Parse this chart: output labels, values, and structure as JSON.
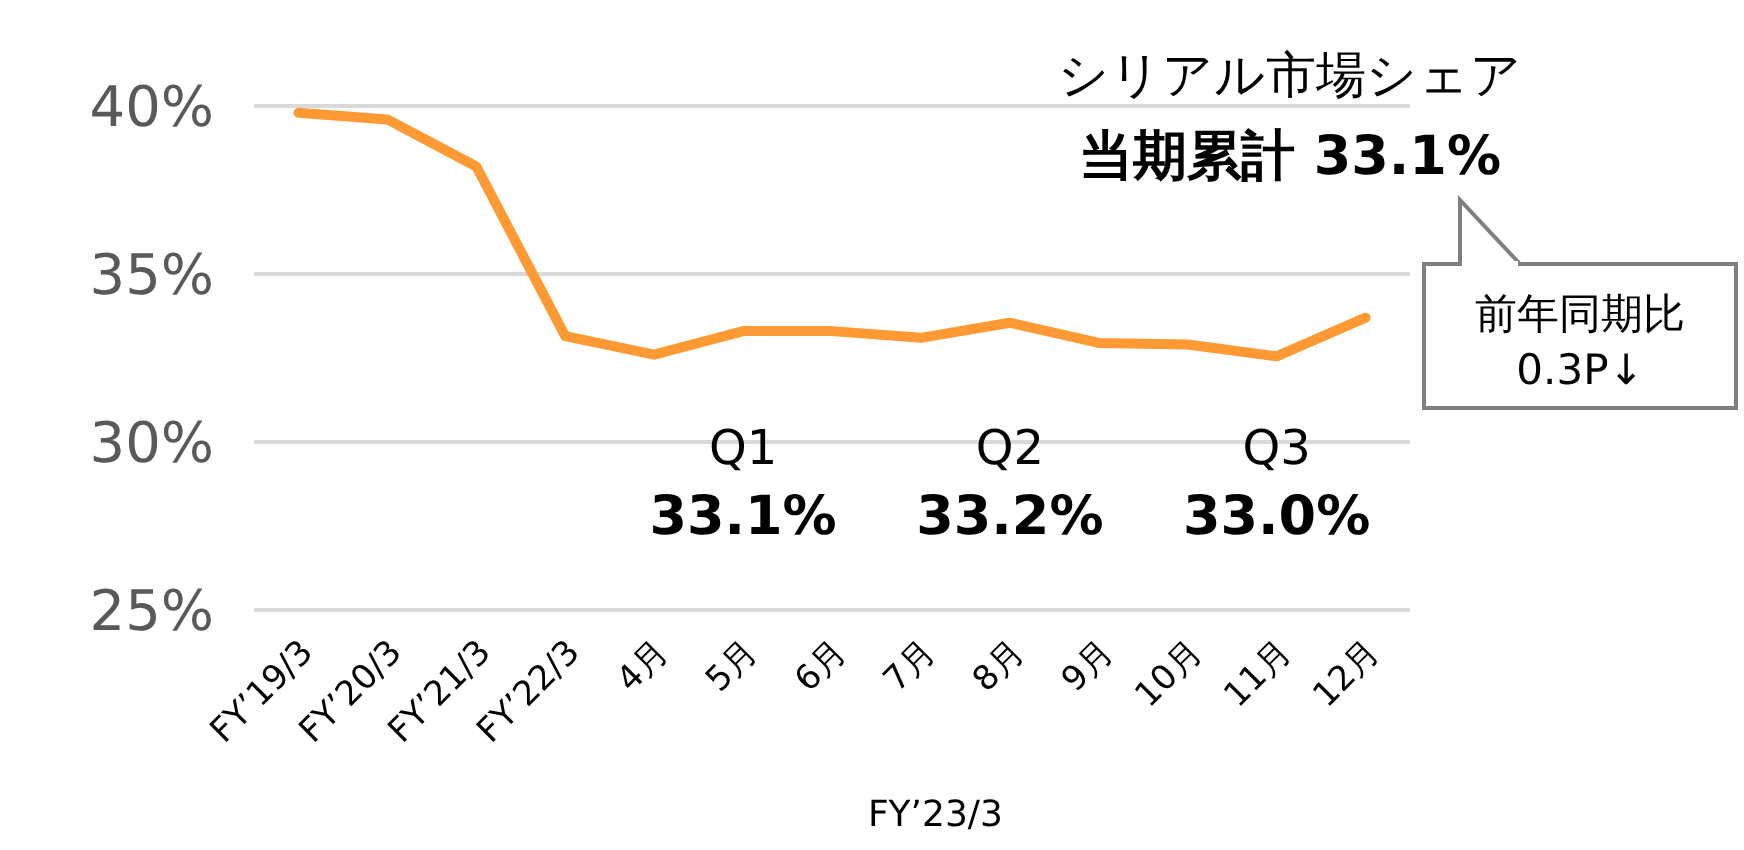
{
  "chart_data": {
    "type": "line",
    "title": "シリアル市場シェア",
    "subtitle": "当期累計  33.1%",
    "xlabel": "FY’23/3",
    "categories": [
      "FY’19/3",
      "FY’20/3",
      "FY’21/3",
      "FY’22/3",
      "4月",
      "5月",
      "6月",
      "7月",
      "8月",
      "9月",
      "10月",
      "11月",
      "12月"
    ],
    "series": [
      {
        "color": "#ff9933",
        "values": [
          39.8,
          39.6,
          38.2,
          33.15,
          32.6,
          33.3,
          33.3,
          33.1,
          33.55,
          32.95,
          32.9,
          32.55,
          33.7
        ]
      }
    ],
    "ylim": [
      25,
      40
    ],
    "yticks": [
      {
        "value": 25,
        "label": "25%"
      },
      {
        "value": 30,
        "label": "30%"
      },
      {
        "value": 35,
        "label": "35%"
      },
      {
        "value": 40,
        "label": "40%"
      }
    ],
    "grid": "y",
    "marker": "none",
    "line_style": "solid",
    "annotations": [
      "前年同期比\n0.3P↓",
      "Q1\n33.1%",
      "Q2\n33.2%",
      "Q3\n33.0%"
    ]
  }
}
